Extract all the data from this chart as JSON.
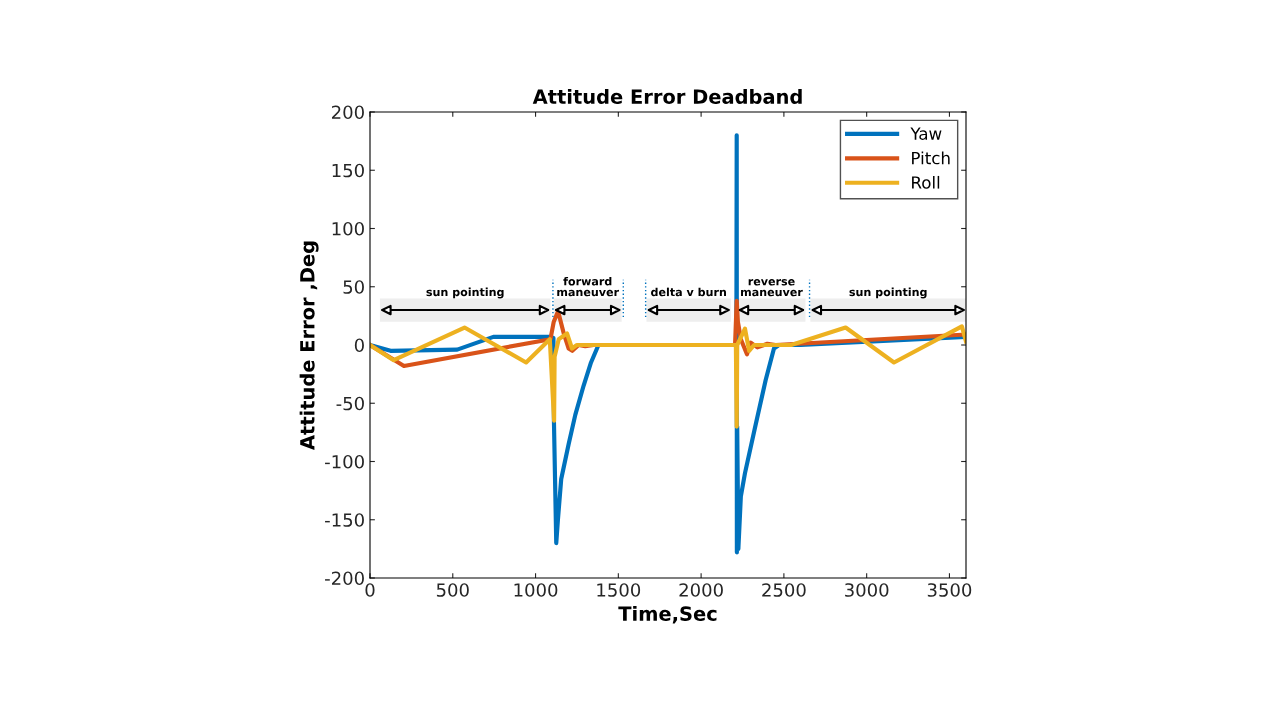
{
  "chart_data": {
    "type": "line",
    "title": "Attitude Error Deadband",
    "xlabel": "Time,Sec",
    "ylabel": "Attitude Error ,Deg",
    "xlim": [
      0,
      3600
    ],
    "xticks": [
      0,
      500,
      1000,
      1500,
      2000,
      2500,
      3000,
      3500
    ],
    "ylim": [
      -200,
      200
    ],
    "yticks": [
      -200,
      -150,
      -100,
      -50,
      0,
      50,
      100,
      150,
      200
    ],
    "grid": false,
    "legend": "top right",
    "line_style": "solid",
    "marker": "none",
    "series": [
      {
        "name": "Yaw",
        "color": "#0072bd",
        "x": [
          0,
          124,
          527,
          745,
          1090,
          1108,
          1111,
          1125,
          1135,
          1155,
          1200,
          1240,
          1290,
          1335,
          1380,
          2213,
          2215,
          2216,
          2218,
          2225,
          2240,
          2265,
          2327,
          2390,
          2440,
          2470,
          2600,
          3600
        ],
        "values": [
          0,
          -5,
          -4,
          7,
          7,
          6,
          -65,
          -170,
          -150,
          -115,
          -85,
          -60,
          -35,
          -15,
          0,
          0,
          180,
          -178,
          -70,
          -175,
          -130,
          -110,
          -70,
          -30,
          -3,
          0,
          0,
          7
        ]
      },
      {
        "name": "Pitch",
        "color": "#d95319",
        "x": [
          0,
          205,
          1090,
          1110,
          1136,
          1170,
          1200,
          1222,
          1260,
          1300,
          1350,
          2205,
          2215,
          2222,
          2240,
          2277,
          2300,
          2340,
          2400,
          2450,
          3600
        ],
        "values": [
          0,
          -18,
          5,
          20,
          29,
          10,
          -3,
          -5,
          0,
          -1,
          0,
          0,
          38,
          20,
          5,
          -8,
          2,
          -2,
          1,
          0,
          9
        ]
      },
      {
        "name": "Roll",
        "color": "#edb120",
        "x": [
          0,
          143,
          571,
          943,
          1086,
          1112,
          1115,
          1140,
          1190,
          1220,
          1250,
          2210,
          2215,
          2218,
          2265,
          2290,
          2320,
          2544,
          2873,
          3165,
          3575,
          3600
        ],
        "values": [
          0,
          -13,
          15,
          -15,
          5,
          -65,
          -10,
          5,
          10,
          -3,
          0,
          0,
          -70,
          0,
          14,
          -5,
          0,
          0,
          15,
          -15,
          16,
          3
        ]
      }
    ],
    "bands": [
      {
        "axis": "x",
        "from": 60,
        "to": 1090,
        "label": "sun pointing"
      },
      {
        "axis": "x",
        "from": 1110,
        "to": 1520,
        "label": "forward\nmaneuver"
      },
      {
        "axis": "x",
        "from": 1670,
        "to": 2180,
        "label": "delta v burn"
      },
      {
        "axis": "x",
        "from": 2220,
        "to": 2630,
        "label": "reverse\nmaneuver"
      },
      {
        "axis": "x",
        "from": 2660,
        "to": 3600,
        "label": "sun pointing"
      }
    ],
    "ref_lines": [
      {
        "axis": "x",
        "value": 1105,
        "color": "#0072bd",
        "line_style": "dotted"
      },
      {
        "axis": "x",
        "value": 1530,
        "color": "#0072bd",
        "line_style": "dotted"
      },
      {
        "axis": "x",
        "value": 1665,
        "color": "#0072bd",
        "line_style": "dotted"
      },
      {
        "axis": "x",
        "value": 2655,
        "color": "#0072bd",
        "line_style": "dotted"
      }
    ]
  }
}
